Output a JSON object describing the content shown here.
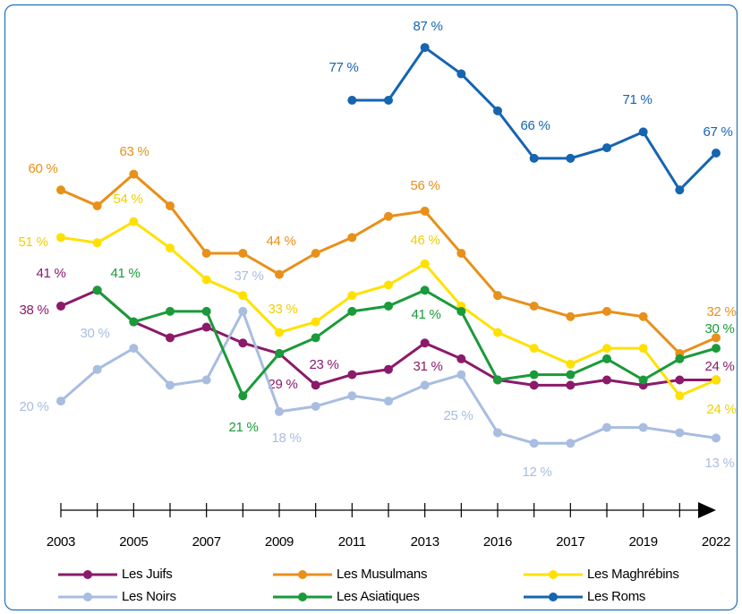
{
  "chart_data": {
    "type": "line",
    "categories": [
      "2003",
      null,
      "2005",
      null,
      "2007",
      null,
      "2009",
      null,
      "2011",
      null,
      "2013",
      null,
      "2016",
      null,
      "2017",
      null,
      "2019",
      null,
      "2022"
    ],
    "ylim": [
      0,
      96
    ],
    "series": [
      {
        "name": "Les Juifs",
        "color": "#8b1a6b",
        "values": [
          38,
          41,
          35,
          32,
          34,
          31,
          29,
          23,
          25,
          26,
          31,
          28,
          24,
          23,
          23,
          24,
          23,
          24,
          24
        ],
        "value_labels": [
          "38 %",
          "41 %",
          null,
          null,
          null,
          null,
          "29 %",
          "23 %",
          null,
          null,
          "31 %",
          null,
          null,
          null,
          null,
          null,
          null,
          null,
          "24 %"
        ]
      },
      {
        "name": "Les Musulmans",
        "color": "#e8901a",
        "values": [
          60,
          57,
          63,
          57,
          48,
          48,
          44,
          48,
          51,
          55,
          56,
          48,
          40,
          38,
          36,
          37,
          36,
          29,
          32
        ],
        "value_labels": [
          "60 %",
          null,
          "63 %",
          null,
          null,
          null,
          "44 %",
          null,
          null,
          null,
          "56 %",
          null,
          null,
          null,
          null,
          null,
          null,
          null,
          "32 %"
        ]
      },
      {
        "name": "Les Maghrébins",
        "color": "#ffe100",
        "values": [
          51,
          50,
          54,
          49,
          43,
          40,
          33,
          35,
          40,
          42,
          46,
          38,
          33,
          30,
          27,
          30,
          30,
          21,
          24
        ],
        "value_labels": [
          "51 %",
          null,
          "54 %",
          null,
          null,
          null,
          "33 %",
          null,
          null,
          null,
          "46 %",
          null,
          null,
          null,
          null,
          null,
          null,
          null,
          "24 %"
        ]
      },
      {
        "name": "Les Noirs",
        "color": "#a8bde0",
        "values": [
          20,
          26,
          30,
          23,
          24,
          37,
          18,
          19,
          21,
          20,
          23,
          25,
          14,
          12,
          12,
          15,
          15,
          14,
          13
        ],
        "value_labels": [
          "20 %",
          null,
          "30 %",
          null,
          null,
          "37 %",
          "18 %",
          null,
          null,
          null,
          null,
          "25 %",
          null,
          "12 %",
          null,
          null,
          null,
          null,
          "13 %"
        ]
      },
      {
        "name": "Les Asiatiques",
        "color": "#1a9a3a",
        "values": [
          null,
          41,
          35,
          37,
          37,
          21,
          29,
          32,
          37,
          38,
          41,
          37,
          24,
          25,
          25,
          28,
          24,
          28,
          30
        ],
        "value_labels": [
          null,
          "41 %",
          null,
          null,
          null,
          "21 %",
          null,
          null,
          null,
          null,
          "41 %",
          null,
          null,
          null,
          null,
          null,
          null,
          null,
          "30 %"
        ]
      },
      {
        "name": "Les Roms",
        "color": "#1565b0",
        "values": [
          null,
          null,
          null,
          null,
          null,
          null,
          null,
          null,
          77,
          77,
          87,
          82,
          75,
          66,
          66,
          68,
          71,
          60,
          67
        ],
        "value_labels": [
          null,
          null,
          null,
          null,
          null,
          null,
          null,
          null,
          "77 %",
          null,
          "87 %",
          null,
          null,
          null,
          "66 %",
          null,
          "71 %",
          null,
          "67 %"
        ]
      }
    ]
  }
}
